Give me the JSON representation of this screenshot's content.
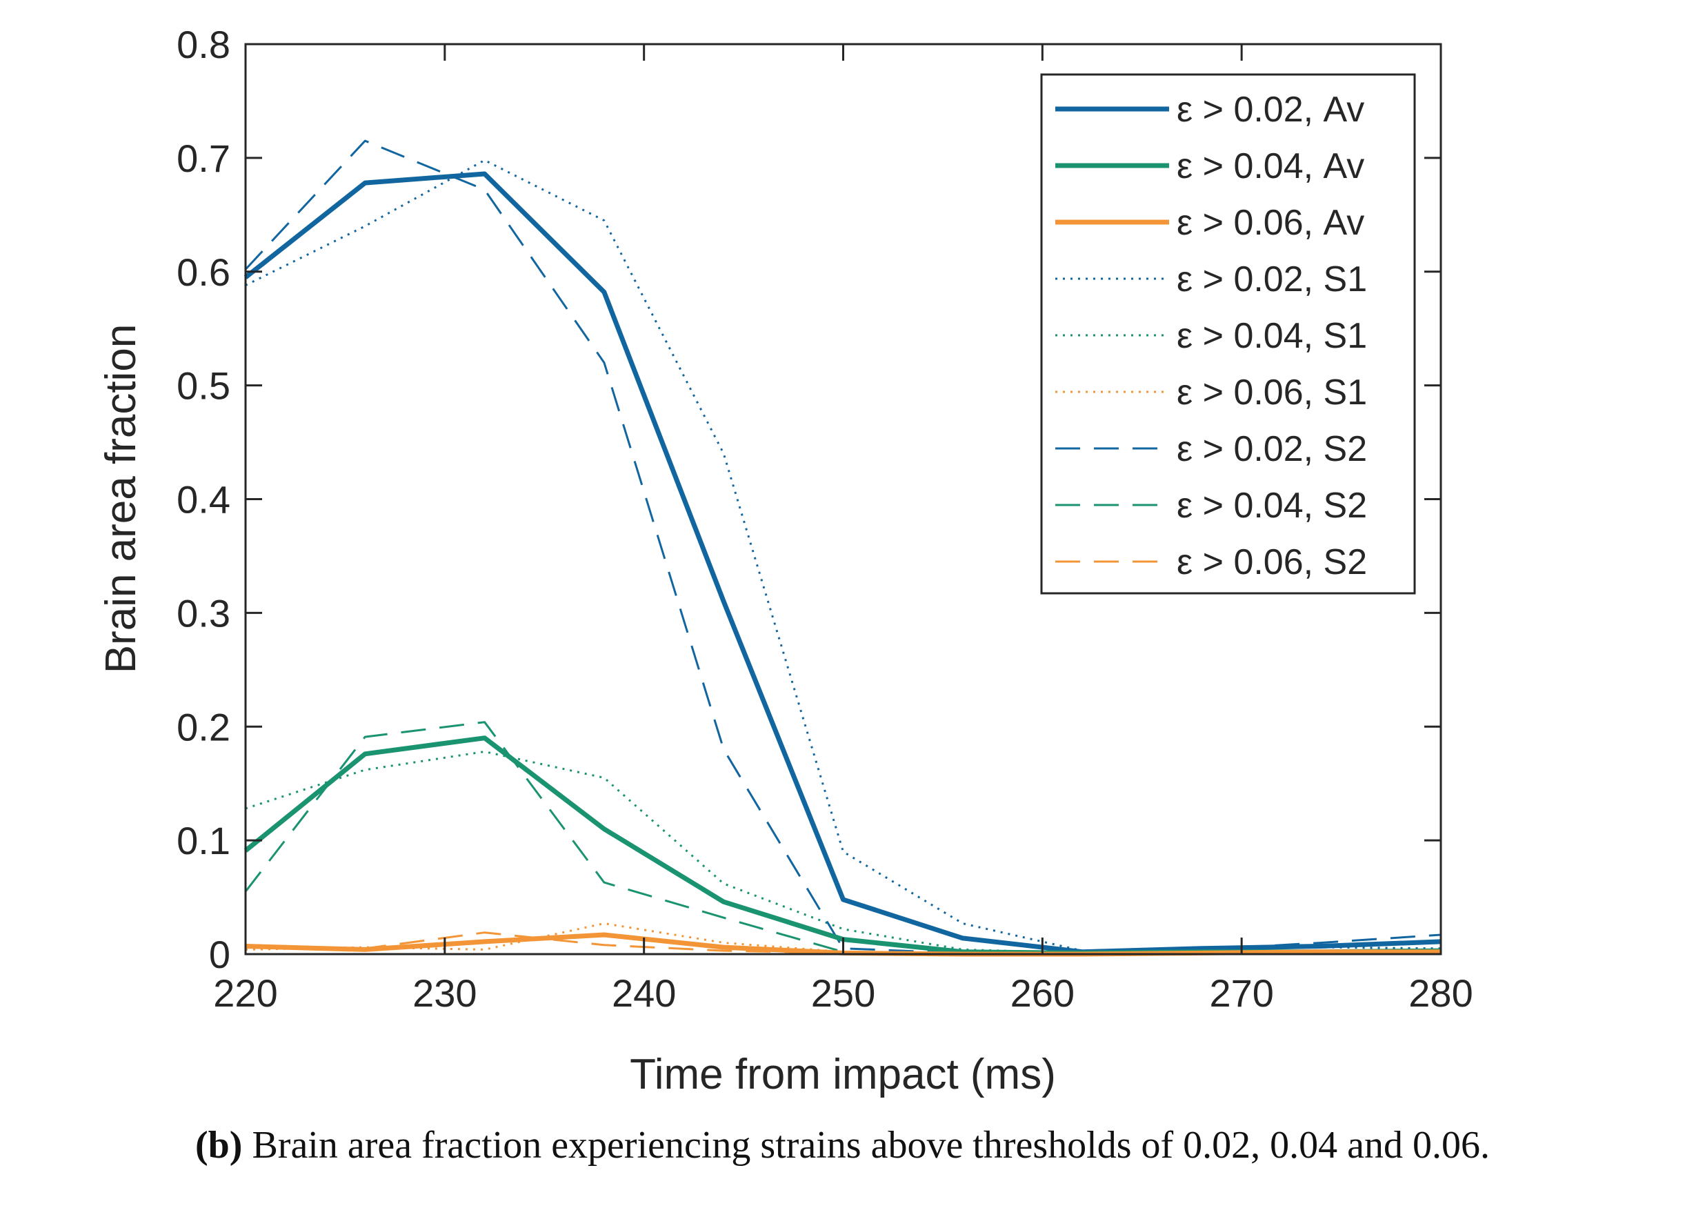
{
  "caption": {
    "label": "(b)",
    "text": "Brain area fraction experiencing strains above thresholds of 0.02, 0.04 and 0.06."
  },
  "chart_data": {
    "type": "line",
    "title": "",
    "xlabel": "Time from impact (ms)",
    "ylabel": "Brain area fraction",
    "xlim": [
      220,
      280
    ],
    "ylim": [
      0,
      0.8
    ],
    "xticks": [
      220,
      230,
      240,
      250,
      260,
      270,
      280
    ],
    "yticks": [
      0,
      0.1,
      0.2,
      0.3,
      0.4,
      0.5,
      0.6,
      0.7,
      0.8
    ],
    "ytick_labels": [
      "0",
      "0.1",
      "0.2",
      "0.3",
      "0.4",
      "0.5",
      "0.6",
      "0.7",
      "0.8"
    ],
    "grid": false,
    "legend_position": "top-right",
    "colors": {
      "blue": "#1266a0",
      "green": "#1a9370",
      "orange": "#f39536",
      "axis": "#262626"
    },
    "x": [
      220,
      226,
      232,
      238,
      244,
      250,
      256,
      262,
      268,
      274,
      280
    ],
    "series": [
      {
        "name": "ε > 0.02, Av",
        "color": "blue",
        "style": "solid",
        "values": [
          0.595,
          0.678,
          0.686,
          0.582,
          0.31,
          0.048,
          0.014,
          0.002,
          0.005,
          0.007,
          0.011
        ]
      },
      {
        "name": "ε > 0.04, Av",
        "color": "green",
        "style": "solid",
        "values": [
          0.091,
          0.176,
          0.19,
          0.11,
          0.046,
          0.013,
          0.002,
          0.001,
          0.002,
          0.002,
          0.003
        ]
      },
      {
        "name": "ε > 0.06, Av",
        "color": "orange",
        "style": "solid",
        "values": [
          0.007,
          0.004,
          0.011,
          0.017,
          0.006,
          0.001,
          0.0,
          0.0,
          0.001,
          0.002,
          0.002
        ]
      },
      {
        "name": "ε > 0.02, S1",
        "color": "blue",
        "style": "dotted",
        "values": [
          0.588,
          0.64,
          0.698,
          0.645,
          0.44,
          0.09,
          0.027,
          0.003,
          0.006,
          0.006,
          0.005
        ]
      },
      {
        "name": "ε > 0.04, S1",
        "color": "green",
        "style": "dotted",
        "values": [
          0.128,
          0.162,
          0.178,
          0.155,
          0.062,
          0.022,
          0.004,
          0.001,
          0.002,
          0.002,
          0.002
        ]
      },
      {
        "name": "ε > 0.06, S1",
        "color": "orange",
        "style": "dotted",
        "values": [
          0.004,
          0.006,
          0.004,
          0.027,
          0.01,
          0.002,
          0.0,
          0.0,
          0.001,
          0.001,
          0.001
        ]
      },
      {
        "name": "ε > 0.02, S2",
        "color": "blue",
        "style": "dashed",
        "values": [
          0.602,
          0.715,
          0.672,
          0.52,
          0.18,
          0.005,
          0.001,
          0.001,
          0.004,
          0.01,
          0.017
        ]
      },
      {
        "name": "ε > 0.04, S2",
        "color": "green",
        "style": "dashed",
        "values": [
          0.055,
          0.191,
          0.204,
          0.063,
          0.032,
          0.002,
          0.0,
          0.0,
          0.001,
          0.002,
          0.004
        ]
      },
      {
        "name": "ε > 0.06, S2",
        "color": "orange",
        "style": "dashed",
        "values": [
          0.008,
          0.005,
          0.019,
          0.008,
          0.003,
          0.001,
          0.0,
          0.0,
          0.001,
          0.001,
          0.001
        ]
      }
    ]
  }
}
